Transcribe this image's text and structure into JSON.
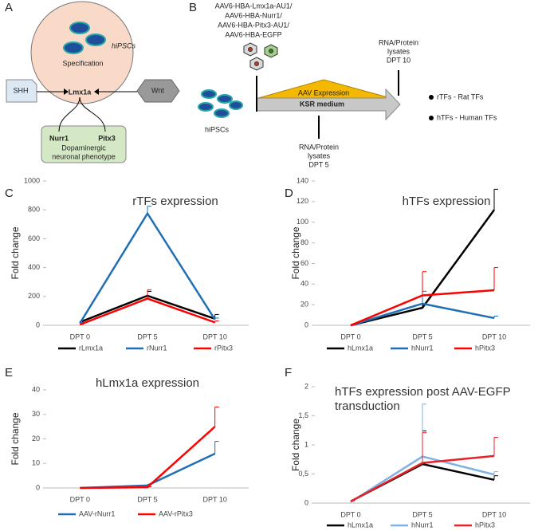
{
  "panel_a": {
    "label": "A",
    "cell": "hiPSCs",
    "process": "Specification",
    "center": "Lmx1a",
    "left": "SHH",
    "right": "Wnt",
    "targets": [
      "Nurr1",
      "Pitx3"
    ],
    "phenotype": [
      "Dopaminergic",
      "neuronal phenotype"
    ]
  },
  "panel_b": {
    "label": "B",
    "vectors": [
      "AAV6-HBA-Lmx1a-AU1/",
      "AAV6-HBA-Nurr1/",
      "AAV6-HBA-Pitx3-AU1/",
      "AAV6-HBA-EGFP"
    ],
    "cells": "hiPSCs",
    "expression": "AAV Expression",
    "medium": "KSR medium",
    "lysates_5": [
      "RNA/Protein",
      "lysates",
      "DPT 5"
    ],
    "lysates_10": [
      "RNA/Protein",
      "lysates",
      "DPT 10"
    ],
    "legend": [
      "rTFs - Rat TFs",
      "hTFs - Human TFs"
    ]
  },
  "chart_data": [
    {
      "type": "line",
      "panel": "C",
      "title": "rTFs expression",
      "ylabel": "Fold change",
      "categories": [
        "DPT 0",
        "DPT 5",
        "DPT 10"
      ],
      "series": [
        {
          "name": "rLmx1a",
          "color": "#000000",
          "values": [
            22,
            205,
            45
          ],
          "errors": [
            5,
            30,
            30
          ]
        },
        {
          "name": "rNurr1",
          "color": "#1f6fb5",
          "values": [
            15,
            775,
            40
          ],
          "errors": [
            5,
            50,
            10
          ]
        },
        {
          "name": "rPitx3",
          "color": "#ff0000",
          "values": [
            5,
            185,
            20
          ],
          "errors": [
            3,
            60,
            10
          ]
        }
      ],
      "ylim": [
        0,
        1000
      ],
      "yticks": [
        0,
        200,
        400,
        600,
        800,
        1000
      ]
    },
    {
      "type": "line",
      "panel": "D",
      "title": "hTFs expression",
      "ylabel": "Fold change",
      "categories": [
        "DPT 0",
        "DPT 5",
        "DPT 10"
      ],
      "series": [
        {
          "name": "hLmx1a",
          "color": "#000000",
          "values": [
            0,
            17,
            112
          ],
          "errors": [
            0,
            3,
            20
          ]
        },
        {
          "name": "hNurr1",
          "color": "#1f6fb5",
          "values": [
            0,
            21,
            7
          ],
          "errors": [
            0,
            12,
            2
          ]
        },
        {
          "name": "hPitx3",
          "color": "#ff0000",
          "values": [
            0,
            29,
            34
          ],
          "errors": [
            0,
            23,
            22
          ]
        }
      ],
      "ylim": [
        0,
        140
      ],
      "yticks": [
        0,
        20,
        40,
        60,
        80,
        100,
        120,
        140
      ]
    },
    {
      "type": "line",
      "panel": "E",
      "title": "hLmx1a expression",
      "ylabel": "Fold change",
      "categories": [
        "DPT 0",
        "DPT 5",
        "DPT 10"
      ],
      "series": [
        {
          "name": "AAV-rNurr1",
          "color": "#1f6fb5",
          "values": [
            0,
            1,
            14
          ],
          "errors": [
            0,
            0.5,
            5
          ]
        },
        {
          "name": "AAV-rPitx3",
          "color": "#ff0000",
          "values": [
            0,
            0.3,
            25
          ],
          "errors": [
            0,
            0.2,
            8
          ]
        }
      ],
      "ylim": [
        0,
        40
      ],
      "yticks": [
        0,
        10,
        20,
        30,
        40
      ]
    },
    {
      "type": "line",
      "panel": "F",
      "title": "hTFs expression post AAV-EGFP transduction",
      "ylabel": "Fold change",
      "categories": [
        "DPT 0",
        "DPT 5",
        "DPT 10"
      ],
      "series": [
        {
          "name": "hLmx1a",
          "color": "#000000",
          "values": [
            0.03,
            0.67,
            0.4
          ],
          "errors": [
            0.01,
            0.57,
            0.07
          ]
        },
        {
          "name": "hNurr1",
          "color": "#7fb1e3",
          "values": [
            0.02,
            0.8,
            0.49
          ],
          "errors": [
            0.01,
            0.9,
            0.05
          ]
        },
        {
          "name": "hPitx3",
          "color": "#e8202a",
          "values": [
            0.03,
            0.69,
            0.81
          ],
          "errors": [
            0.01,
            0.52,
            0.32
          ]
        }
      ],
      "ylim": [
        0,
        2
      ],
      "yticks": [
        0,
        {
          "value": 0.5,
          "label": "0,5"
        },
        1,
        {
          "value": 1.5,
          "label": "1,5"
        },
        2
      ]
    }
  ]
}
